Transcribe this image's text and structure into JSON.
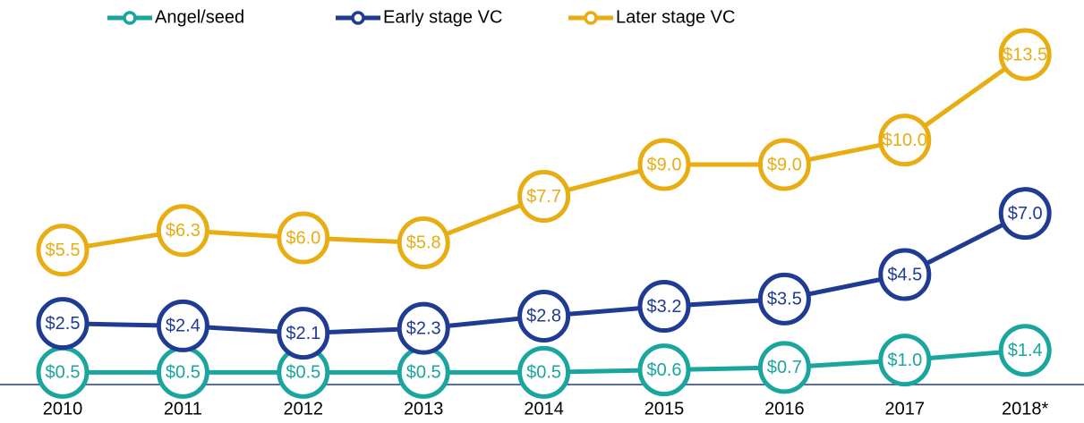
{
  "chart_data": {
    "type": "line",
    "categories": [
      "2010",
      "2011",
      "2012",
      "2013",
      "2014",
      "2015",
      "2016",
      "2017",
      "2018*"
    ],
    "series": [
      {
        "name": "Angel/seed",
        "color": "#1aa59e",
        "values": [
          0.5,
          0.5,
          0.5,
          0.5,
          0.5,
          0.6,
          0.7,
          1.0,
          1.4
        ],
        "value_labels": [
          "$0.5",
          "$0.5",
          "$0.5",
          "$0.5",
          "$0.5",
          "$0.6",
          "$0.7",
          "$1.0",
          "$1.4"
        ]
      },
      {
        "name": "Early stage VC",
        "color": "#1f3b94",
        "values": [
          2.5,
          2.4,
          2.1,
          2.3,
          2.8,
          3.2,
          3.5,
          4.5,
          7.0
        ],
        "value_labels": [
          "$2.5",
          "$2.4",
          "$2.1",
          "$2.3",
          "$2.8",
          "$3.2",
          "$3.5",
          "$4.5",
          "$7.0"
        ]
      },
      {
        "name": "Later stage VC",
        "color": "#e8ad12",
        "values": [
          5.5,
          6.3,
          6.0,
          5.8,
          7.7,
          9.0,
          9.0,
          10.0,
          13.5
        ],
        "value_labels": [
          "$5.5",
          "$6.3",
          "$6.0",
          "$5.8",
          "$7.7",
          "$9.0",
          "$9.0",
          "$10.0",
          "$13.5"
        ]
      }
    ],
    "ylim": [
      0,
      15
    ],
    "legend": "top",
    "axis_color": "#1f3b94"
  }
}
